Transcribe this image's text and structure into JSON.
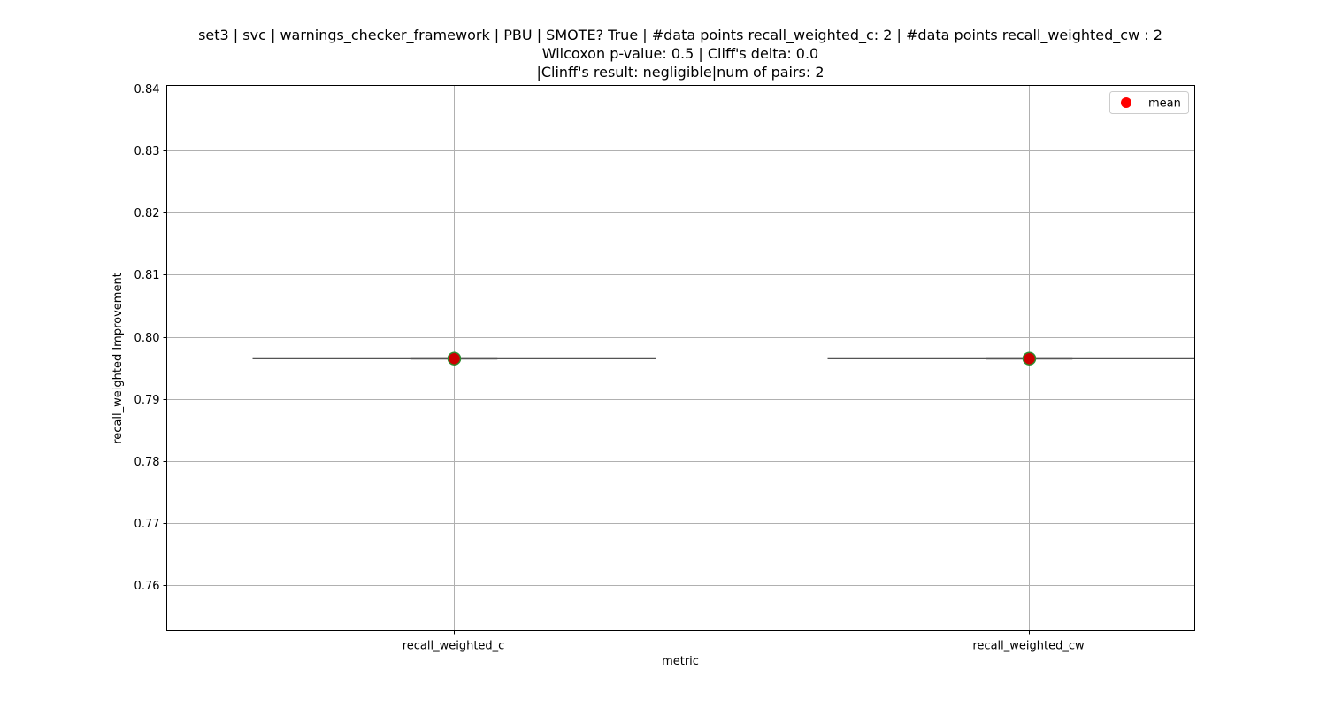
{
  "chart_data": {
    "type": "boxplot",
    "title_lines": [
      "set3 | svc | warnings_checker_framework | PBU | SMOTE? True | #data points recall_weighted_c: 2 | #data points recall_weighted_cw : 2",
      "Wilcoxon p-value: 0.5 | Cliff's delta: 0.0",
      "|Clinff's result: negligible|num of pairs: 2"
    ],
    "xlabel": "metric",
    "ylabel": "recall_weighted Improvement",
    "categories": [
      "recall_weighted_c",
      "recall_weighted_cw"
    ],
    "ylim": [
      0.7527,
      0.8405
    ],
    "yticks": [
      "0.76",
      "0.77",
      "0.78",
      "0.79",
      "0.80",
      "0.81",
      "0.82",
      "0.83",
      "0.84"
    ],
    "grid": true,
    "legend": {
      "position": "top-right",
      "entries": [
        {
          "label": "mean",
          "marker": "circle",
          "color": "#ff0000"
        }
      ]
    },
    "series": [
      {
        "category": "recall_weighted_c",
        "min": 0.7965,
        "q1": 0.7965,
        "median": 0.7965,
        "q3": 0.7966,
        "max": 0.7966,
        "mean": 0.7965
      },
      {
        "category": "recall_weighted_cw",
        "min": 0.7965,
        "q1": 0.7965,
        "median": 0.7965,
        "q3": 0.7966,
        "max": 0.7966,
        "mean": 0.7965
      }
    ],
    "colors": {
      "box_line": "#555555",
      "mean_fill": "#cc0000",
      "mean_edge": "#2e8b2e",
      "grid": "#b0b0b0"
    }
  }
}
